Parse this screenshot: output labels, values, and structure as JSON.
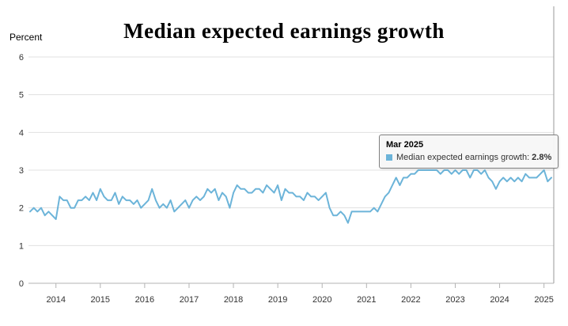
{
  "chart": {
    "title": "Median expected earnings growth",
    "ylabel": "Percent"
  },
  "tooltip": {
    "header": "Mar 2025",
    "series_label": "Median expected earnings growth:",
    "value": "2.8%"
  },
  "chart_data": {
    "type": "line",
    "title": "Median expected earnings growth",
    "series_name": "Median expected earnings growth",
    "xlabel": "",
    "ylabel": "Percent",
    "ylim": [
      0,
      6
    ],
    "y_ticks": [
      0,
      1,
      2,
      3,
      4,
      5,
      6
    ],
    "x_tick_years": [
      2014,
      2015,
      2016,
      2017,
      2018,
      2019,
      2020,
      2021,
      2022,
      2023,
      2024,
      2025
    ],
    "grid": true,
    "legend_position": "none",
    "line_color": "#6cb4d9",
    "grid_color": "#e0e0e0",
    "axis_color": "#b3b3b3",
    "border_color": "#999999",
    "x": [
      "2013-06",
      "2013-07",
      "2013-08",
      "2013-09",
      "2013-10",
      "2013-11",
      "2013-12",
      "2014-01",
      "2014-02",
      "2014-03",
      "2014-04",
      "2014-05",
      "2014-06",
      "2014-07",
      "2014-08",
      "2014-09",
      "2014-10",
      "2014-11",
      "2014-12",
      "2015-01",
      "2015-02",
      "2015-03",
      "2015-04",
      "2015-05",
      "2015-06",
      "2015-07",
      "2015-08",
      "2015-09",
      "2015-10",
      "2015-11",
      "2015-12",
      "2016-01",
      "2016-02",
      "2016-03",
      "2016-04",
      "2016-05",
      "2016-06",
      "2016-07",
      "2016-08",
      "2016-09",
      "2016-10",
      "2016-11",
      "2016-12",
      "2017-01",
      "2017-02",
      "2017-03",
      "2017-04",
      "2017-05",
      "2017-06",
      "2017-07",
      "2017-08",
      "2017-09",
      "2017-10",
      "2017-11",
      "2017-12",
      "2018-01",
      "2018-02",
      "2018-03",
      "2018-04",
      "2018-05",
      "2018-06",
      "2018-07",
      "2018-08",
      "2018-09",
      "2018-10",
      "2018-11",
      "2018-12",
      "2019-01",
      "2019-02",
      "2019-03",
      "2019-04",
      "2019-05",
      "2019-06",
      "2019-07",
      "2019-08",
      "2019-09",
      "2019-10",
      "2019-11",
      "2019-12",
      "2020-01",
      "2020-02",
      "2020-03",
      "2020-04",
      "2020-05",
      "2020-06",
      "2020-07",
      "2020-08",
      "2020-09",
      "2020-10",
      "2020-11",
      "2020-12",
      "2021-01",
      "2021-02",
      "2021-03",
      "2021-04",
      "2021-05",
      "2021-06",
      "2021-07",
      "2021-08",
      "2021-09",
      "2021-10",
      "2021-11",
      "2021-12",
      "2022-01",
      "2022-02",
      "2022-03",
      "2022-04",
      "2022-05",
      "2022-06",
      "2022-07",
      "2022-08",
      "2022-09",
      "2022-10",
      "2022-11",
      "2022-12",
      "2023-01",
      "2023-02",
      "2023-03",
      "2023-04",
      "2023-05",
      "2023-06",
      "2023-07",
      "2023-08",
      "2023-09",
      "2023-10",
      "2023-11",
      "2023-12",
      "2024-01",
      "2024-02",
      "2024-03",
      "2024-04",
      "2024-05",
      "2024-06",
      "2024-07",
      "2024-08",
      "2024-09",
      "2024-10",
      "2024-11",
      "2024-12",
      "2025-01",
      "2025-02",
      "2025-03"
    ],
    "values": [
      1.9,
      2.0,
      1.9,
      2.0,
      1.8,
      1.9,
      1.8,
      1.7,
      2.3,
      2.2,
      2.2,
      2.0,
      2.0,
      2.2,
      2.2,
      2.3,
      2.2,
      2.4,
      2.2,
      2.5,
      2.3,
      2.2,
      2.2,
      2.4,
      2.1,
      2.3,
      2.2,
      2.2,
      2.1,
      2.2,
      2.0,
      2.1,
      2.2,
      2.5,
      2.2,
      2.0,
      2.1,
      2.0,
      2.2,
      1.9,
      2.0,
      2.1,
      2.2,
      2.0,
      2.2,
      2.3,
      2.2,
      2.3,
      2.5,
      2.4,
      2.5,
      2.2,
      2.4,
      2.3,
      2.0,
      2.4,
      2.6,
      2.5,
      2.5,
      2.4,
      2.4,
      2.5,
      2.5,
      2.4,
      2.6,
      2.5,
      2.4,
      2.6,
      2.2,
      2.5,
      2.4,
      2.4,
      2.3,
      2.3,
      2.2,
      2.4,
      2.3,
      2.3,
      2.2,
      2.3,
      2.4,
      2.0,
      1.8,
      1.8,
      1.9,
      1.8,
      1.6,
      1.9,
      1.9,
      1.9,
      1.9,
      1.9,
      1.9,
      2.0,
      1.9,
      2.1,
      2.3,
      2.4,
      2.6,
      2.8,
      2.6,
      2.8,
      2.8,
      2.9,
      2.9,
      3.0,
      3.0,
      3.0,
      3.0,
      3.0,
      3.0,
      2.9,
      3.0,
      3.0,
      2.9,
      3.0,
      2.9,
      3.0,
      3.0,
      2.8,
      3.0,
      3.0,
      2.9,
      3.0,
      2.8,
      2.7,
      2.5,
      2.7,
      2.8,
      2.7,
      2.8,
      2.7,
      2.8,
      2.7,
      2.9,
      2.8,
      2.8,
      2.8,
      2.9,
      3.0,
      2.7,
      2.8
    ]
  }
}
